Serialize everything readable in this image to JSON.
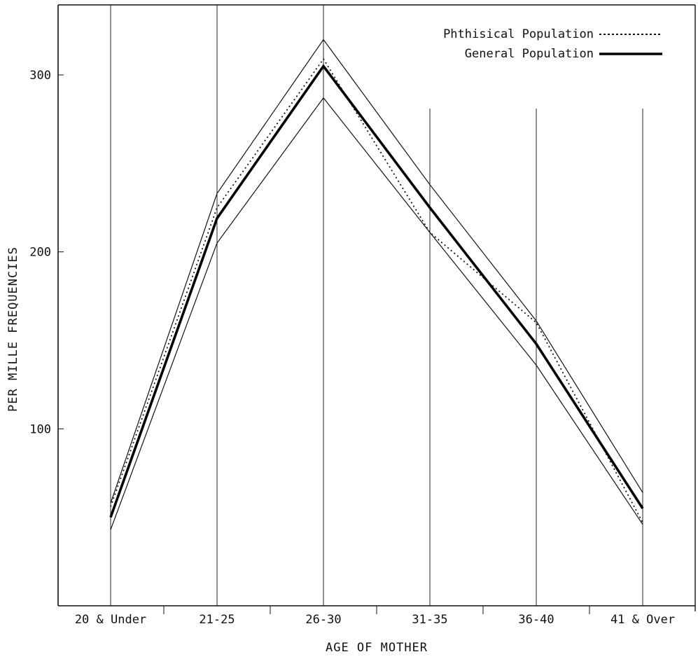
{
  "chart_data": {
    "type": "line",
    "title": "",
    "xlabel": "AGE OF MOTHER",
    "ylabel": "PER MILLE FREQUENCIES",
    "categories": [
      "20 & Under",
      "21-25",
      "26-30",
      "31-35",
      "36-40",
      "41 & Over"
    ],
    "yticks": [
      100,
      200,
      300
    ],
    "ylim": [
      0,
      340
    ],
    "grid": "vertical lines at each category",
    "legend_position": "top-right",
    "series": [
      {
        "name": "Phthisical Population",
        "style": "dotted",
        "values": [
          56,
          225,
          309,
          211,
          160,
          47
        ]
      },
      {
        "name": "General Population",
        "style": "solid-bold",
        "values": [
          50,
          219,
          305,
          225,
          148,
          55
        ]
      },
      {
        "style": "thin",
        "values": [
          58,
          233,
          320,
          238,
          161,
          64
        ]
      },
      {
        "style": "thin",
        "values": [
          43,
          205,
          287,
          211,
          136,
          46
        ]
      }
    ]
  }
}
